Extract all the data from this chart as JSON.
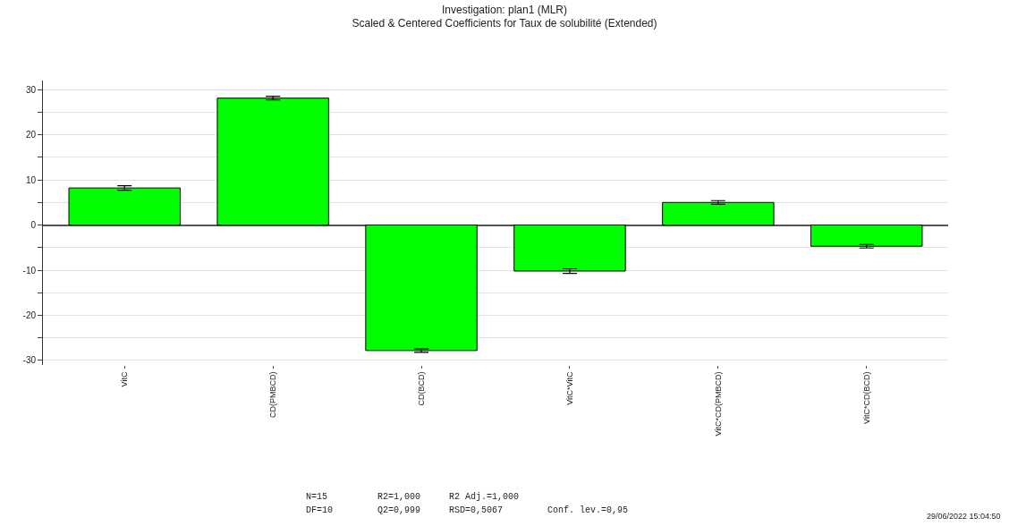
{
  "chart_data": {
    "type": "bar",
    "title": "Investigation: plan1 (MLR)",
    "subtitle": "Scaled & Centered Coefficients for Taux de solubilité (Extended)",
    "categories": [
      "VitC",
      "CD(PMBCD)",
      "CD(BCD)",
      "VitC*VitC",
      "VitC*CD(PMBCD)",
      "VitC*CD(BCD)"
    ],
    "values": [
      8.2,
      28.1,
      -27.8,
      -10.2,
      5.0,
      -4.7
    ],
    "errors": [
      0.5,
      0.4,
      0.4,
      0.5,
      0.4,
      0.4
    ],
    "color": "#00ff00",
    "ylim": [
      -31,
      32
    ],
    "yticks": [
      -30,
      {
        "value": -25,
        "label": null
      },
      -20,
      {
        "value": -15,
        "label": null
      },
      -10,
      {
        "value": -5,
        "label": null
      },
      0,
      {
        "value": 5,
        "label": null
      },
      10,
      {
        "value": 15,
        "label": null
      },
      20,
      {
        "value": 25,
        "label": null
      },
      30
    ],
    "grid": "y",
    "annotations": [
      "N=15",
      "DF=10",
      "R2=1,000",
      "Q2=0,999",
      "R2 Adj.=1,000",
      "RSD=0,5067",
      "Conf. lev.=0,95",
      "29/06/2022 15:04:50"
    ]
  }
}
